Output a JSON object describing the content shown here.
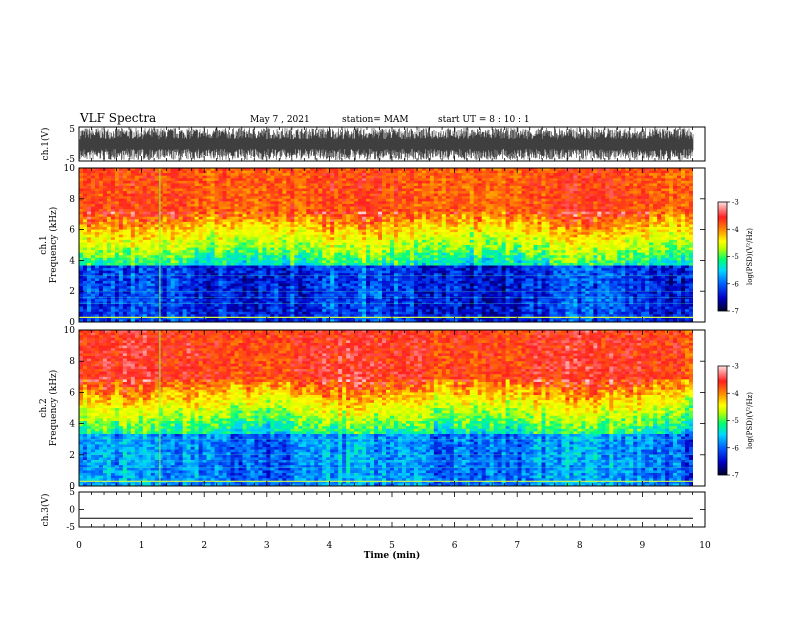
{
  "header": {
    "title": "VLF Spectra",
    "date": "May 7 , 2021",
    "station": "station= MAM",
    "start": "start  UT =   8  : 10 : 1"
  },
  "chart_data": [
    {
      "type": "line",
      "panel": "ch1-waveform",
      "ylabel": "ch.1(V)",
      "ylim": [
        -5,
        5
      ],
      "yticks": [
        "5",
        "-5"
      ],
      "xlim": [
        0,
        10
      ],
      "description_values": {
        "amplitude_min": -5,
        "amplitude_max": 5
      },
      "color": "#000000"
    },
    {
      "type": "heatmap",
      "panel": "ch1-spectrogram",
      "ylabel": "ch.1\nFrequency (kHz)",
      "ylim": [
        0,
        10
      ],
      "yticks": [
        "0",
        "2",
        "4",
        "6",
        "8",
        "10"
      ],
      "xlim": [
        0,
        10
      ],
      "colorbar": {
        "label": "log(PSD)(V²/Hz)",
        "range": [
          -7,
          -3
        ],
        "ticks": [
          "-3",
          "-4",
          "-5",
          "-6",
          "-7"
        ]
      },
      "boundary_khz": 5.3,
      "colormap": [
        "#00003c",
        "#0000c8",
        "#0060ff",
        "#00d0ff",
        "#00ff80",
        "#c8ff00",
        "#ffff00",
        "#ff9000",
        "#ff2020",
        "#ffd0d0"
      ]
    },
    {
      "type": "heatmap",
      "panel": "ch2-spectrogram",
      "ylabel": "ch.2\nFrequency (kHz)",
      "ylim": [
        0,
        10
      ],
      "yticks": [
        "0",
        "2",
        "4",
        "6",
        "8",
        "10"
      ],
      "xlim": [
        0,
        10
      ],
      "colorbar": {
        "label": "log(PSD)(V²/Hz)",
        "range": [
          -7,
          -3
        ],
        "ticks": [
          "-3",
          "-4",
          "-5",
          "-6",
          "-7"
        ]
      },
      "boundary_khz": 5.0
    },
    {
      "type": "line",
      "panel": "ch3-waveform",
      "ylabel": "ch.3(V)",
      "ylim": [
        -5,
        5
      ],
      "yticks": [
        "5",
        "0",
        "-5"
      ],
      "xlim": [
        0,
        10
      ],
      "xlabel": "Time (min)",
      "xticks": [
        "0",
        "1",
        "2",
        "3",
        "4",
        "5",
        "6",
        "7",
        "8",
        "9",
        "10"
      ],
      "constant_value": -2.5
    }
  ]
}
